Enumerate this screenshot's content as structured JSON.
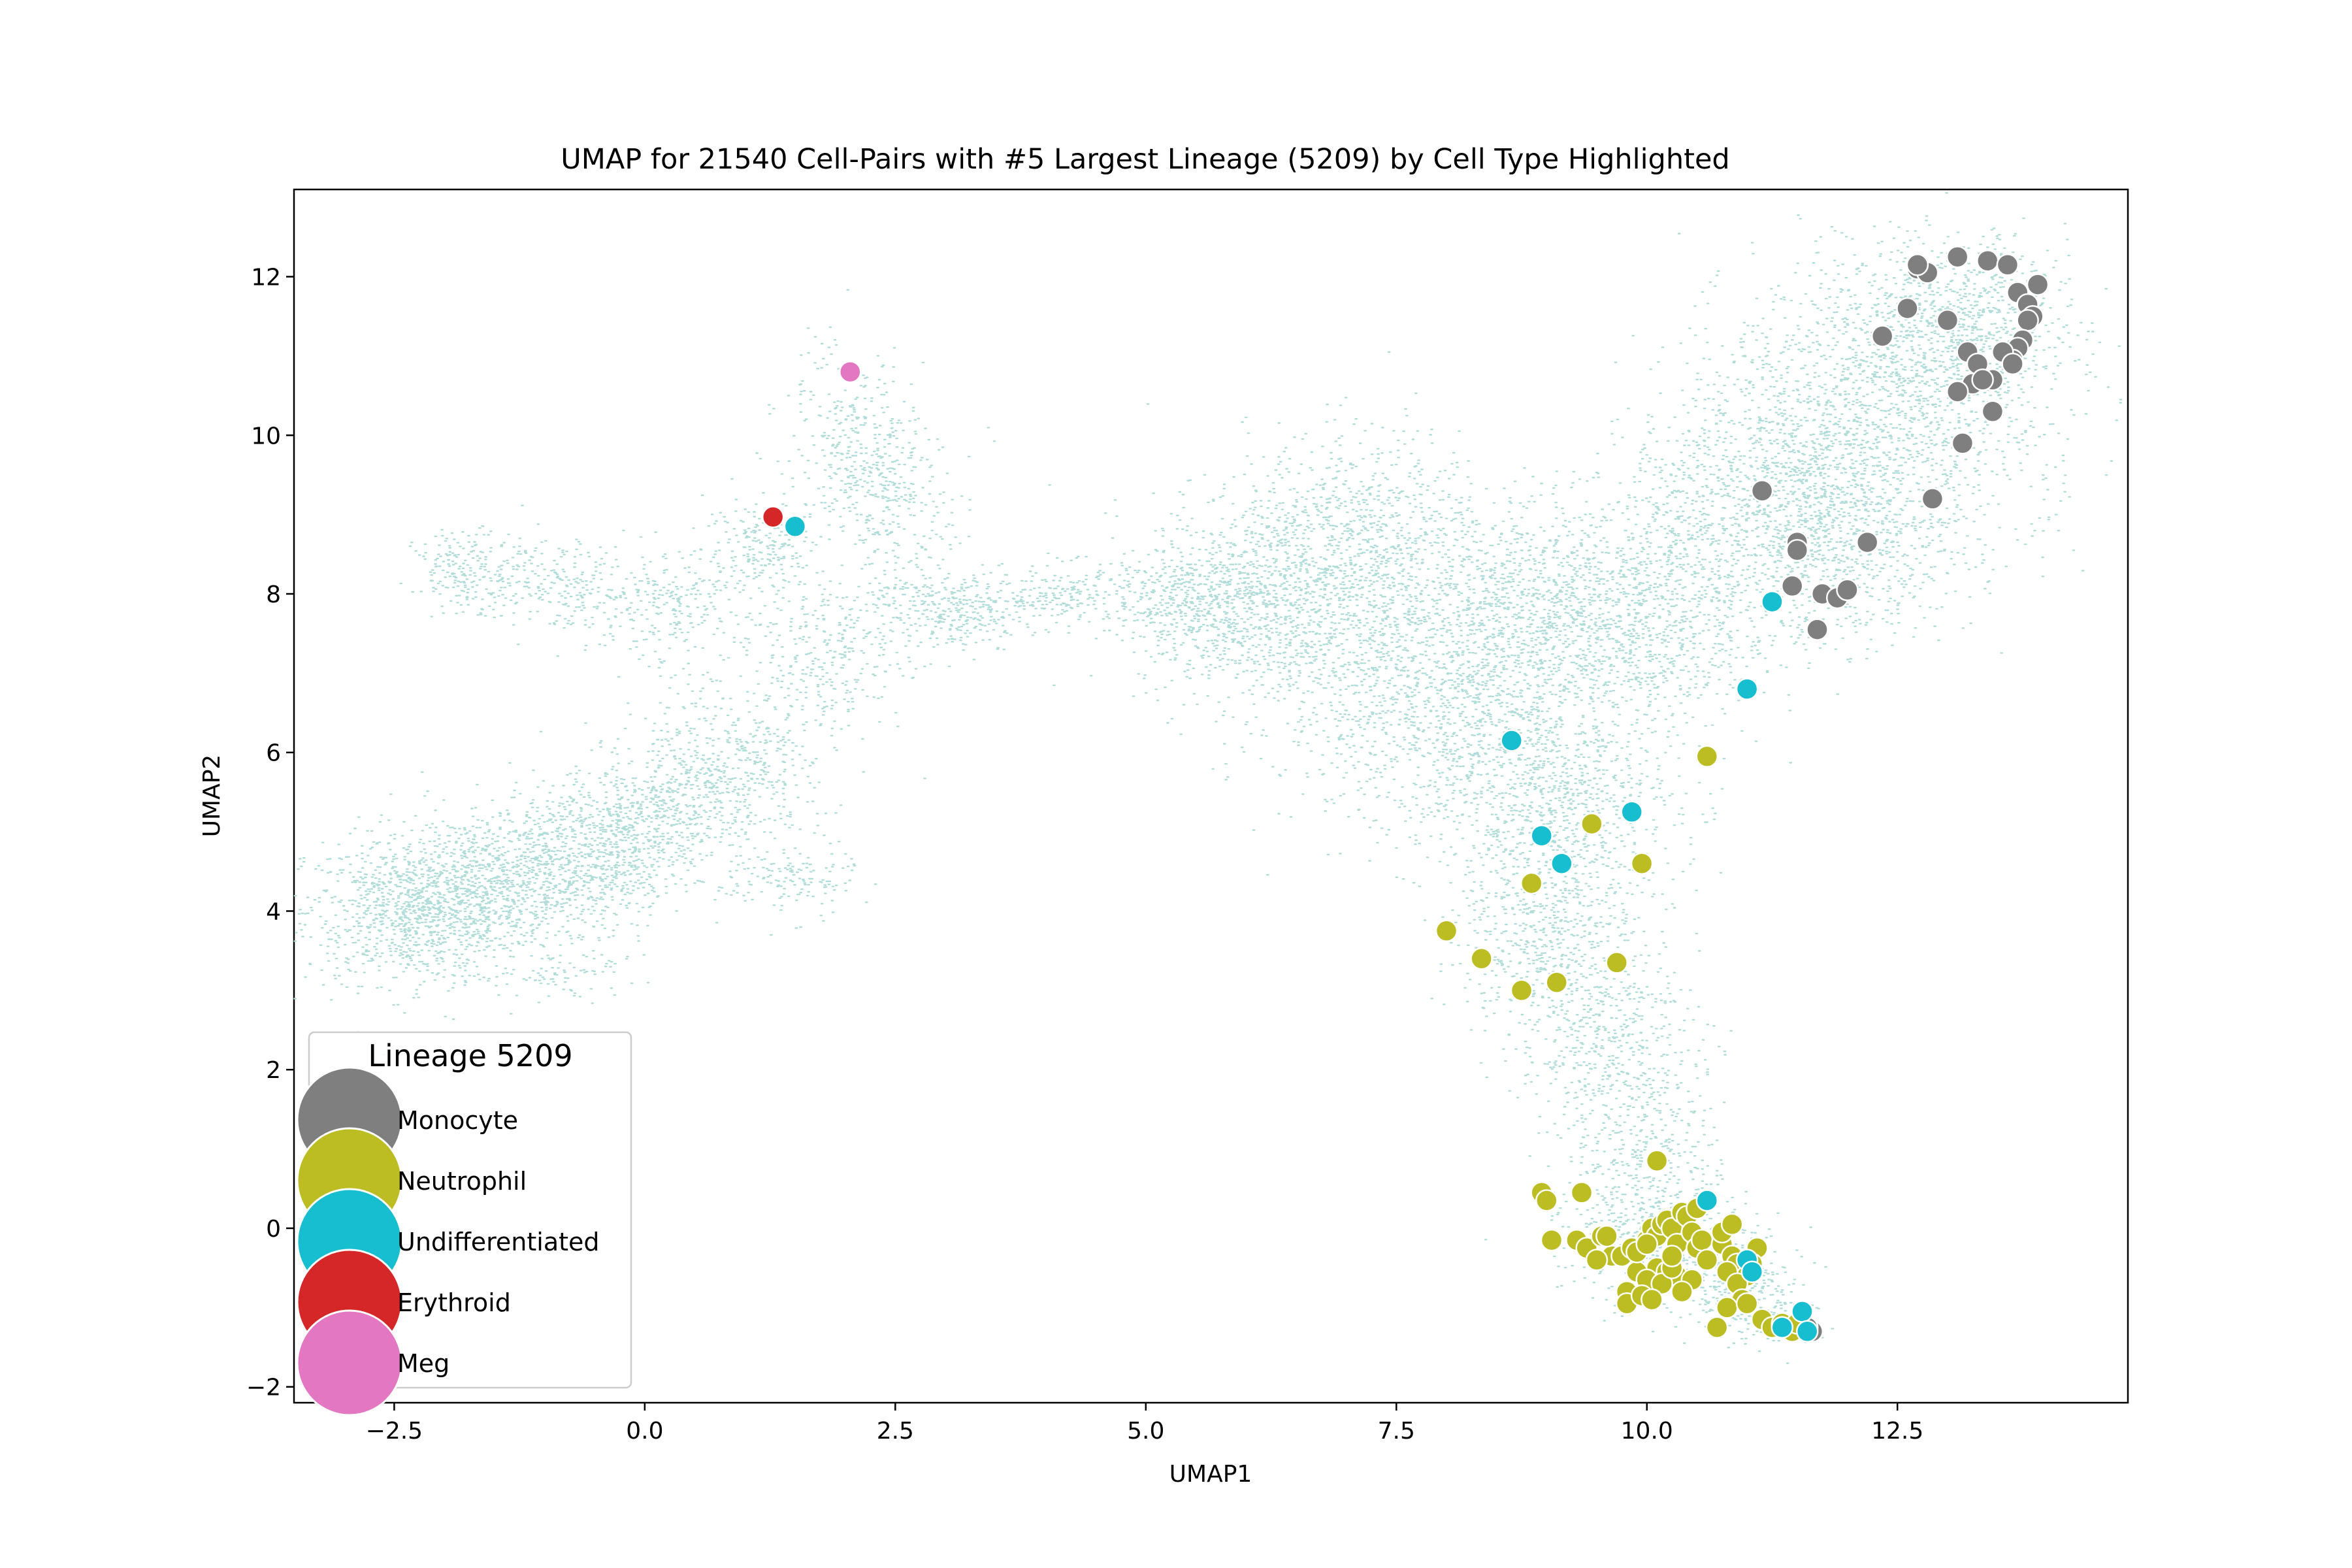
{
  "chart_data": {
    "type": "scatter",
    "title": "UMAP for 21540 Cell-Pairs with #5 Largest Lineage (5209) by Cell Type Highlighted",
    "xlabel": "UMAP1",
    "ylabel": "UMAP2",
    "xlim": [
      -3.5,
      14.8
    ],
    "ylim": [
      -2.2,
      13.1
    ],
    "xticks": [
      -2.5,
      0.0,
      2.5,
      5.0,
      7.5,
      10.0,
      12.5
    ],
    "xtick_labels": [
      "−2.5",
      "0.0",
      "2.5",
      "5.0",
      "7.5",
      "10.0",
      "12.5"
    ],
    "yticks": [
      -2,
      0,
      2,
      4,
      6,
      8,
      10,
      12
    ],
    "ytick_labels": [
      "−2",
      "0",
      "2",
      "4",
      "6",
      "8",
      "10",
      "12"
    ],
    "grid": false,
    "background_color": "#b0dcd9",
    "background_points_count": 21540,
    "legend": {
      "title": "Lineage 5209",
      "placement": "lower-left",
      "entries": [
        {
          "label": "Monocyte",
          "color": "#7f7f7f"
        },
        {
          "label": "Neutrophil",
          "color": "#bcbd22"
        },
        {
          "label": "Undifferentiated",
          "color": "#17becf"
        },
        {
          "label": "Erythroid",
          "color": "#d62728"
        },
        {
          "label": "Meg",
          "color": "#e377c2"
        }
      ]
    },
    "series": [
      {
        "name": "Monocyte",
        "color": "#7f7f7f",
        "x": [
          12.7,
          12.8,
          12.7,
          13.1,
          13.4,
          13.6,
          13.7,
          13.9,
          13.8,
          13.85,
          13.8,
          13.75,
          13.7,
          12.6,
          13.0,
          12.35,
          13.2,
          13.3,
          13.65,
          13.55,
          13.45,
          13.25,
          13.35,
          13.65,
          13.1,
          13.45,
          13.15,
          11.15,
          12.85,
          11.5,
          11.5,
          12.2,
          11.45,
          11.75,
          11.9,
          12.0,
          11.7,
          11.65,
          11.6
        ],
        "y": [
          12.1,
          12.05,
          12.15,
          12.25,
          12.2,
          12.15,
          11.8,
          11.9,
          11.65,
          11.5,
          11.45,
          11.2,
          11.1,
          11.6,
          11.45,
          11.25,
          11.05,
          10.9,
          10.95,
          11.05,
          10.7,
          10.65,
          10.7,
          10.9,
          10.55,
          10.3,
          9.9,
          9.3,
          9.2,
          8.65,
          8.55,
          8.65,
          8.1,
          8.0,
          7.95,
          8.05,
          7.55,
          -1.3,
          -1.25
        ]
      },
      {
        "name": "Neutrophil",
        "color": "#bcbd22",
        "x": [
          10.6,
          9.45,
          9.95,
          8.85,
          8.0,
          8.35,
          9.7,
          8.75,
          9.1,
          10.1,
          8.95,
          9.0,
          9.35,
          9.05,
          9.3,
          9.4,
          9.55,
          9.65,
          9.5,
          9.75,
          9.85,
          10.0,
          10.05,
          10.1,
          10.15,
          10.2,
          10.25,
          10.3,
          10.35,
          10.4,
          10.45,
          10.5,
          10.55,
          10.1,
          10.2,
          10.3,
          9.8,
          9.9,
          10.0,
          10.15,
          10.25,
          10.45,
          10.6,
          10.75,
          10.85,
          10.9,
          11.0,
          11.1,
          10.8,
          10.9,
          11.05,
          10.95,
          10.8,
          11.15,
          11.25,
          11.35,
          11.45,
          10.7,
          9.8,
          9.95,
          10.05,
          10.35,
          10.5,
          10.75,
          10.85,
          11.0,
          9.6,
          9.9,
          10.0,
          10.25,
          11.5
        ],
        "y": [
          5.95,
          5.1,
          4.6,
          4.35,
          3.75,
          3.4,
          3.35,
          3.0,
          3.1,
          0.85,
          0.45,
          0.35,
          0.45,
          -0.15,
          -0.15,
          -0.25,
          -0.1,
          -0.35,
          -0.4,
          -0.35,
          -0.25,
          -0.15,
          0.0,
          -0.1,
          0.05,
          0.1,
          0.0,
          -0.2,
          0.2,
          0.15,
          -0.05,
          -0.25,
          -0.15,
          -0.5,
          -0.55,
          -0.6,
          -0.8,
          -0.55,
          -0.65,
          -0.7,
          -0.5,
          -0.65,
          -0.4,
          -0.2,
          -0.35,
          -0.45,
          -0.6,
          -0.25,
          -0.55,
          -0.7,
          -0.45,
          -0.9,
          -1.0,
          -1.15,
          -1.25,
          -1.2,
          -1.3,
          -1.25,
          -0.95,
          -0.85,
          -0.9,
          -0.8,
          0.25,
          -0.05,
          0.05,
          -0.95,
          -0.1,
          -0.3,
          -0.2,
          -0.35,
          -1.2
        ]
      },
      {
        "name": "Undifferentiated",
        "color": "#17becf",
        "x": [
          1.5,
          11.25,
          11.0,
          8.65,
          9.85,
          8.95,
          9.15,
          10.6,
          11.0,
          11.05,
          11.55,
          11.6,
          11.35
        ],
        "y": [
          8.85,
          7.9,
          6.8,
          6.15,
          5.25,
          4.95,
          4.6,
          0.35,
          -0.4,
          -0.55,
          -1.05,
          -1.3,
          -1.25
        ]
      },
      {
        "name": "Erythroid",
        "color": "#d62728",
        "x": [
          1.28
        ],
        "y": [
          8.97
        ]
      },
      {
        "name": "Meg",
        "color": "#e377c2",
        "x": [
          2.05
        ],
        "y": [
          10.8
        ]
      }
    ]
  }
}
